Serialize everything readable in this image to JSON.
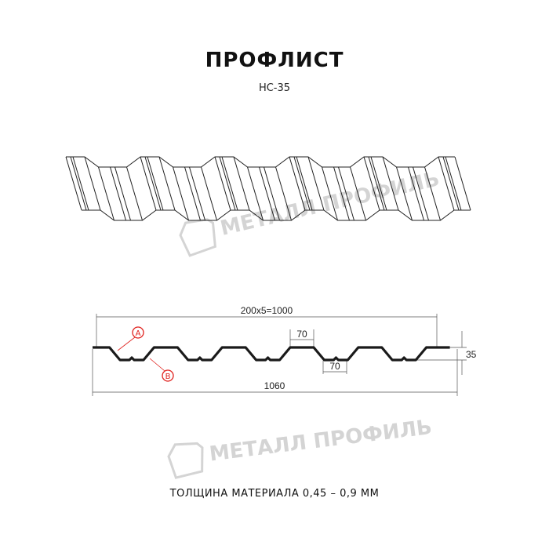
{
  "title": "ПРОФЛИСТ",
  "subtitle": "НС-35",
  "watermark": "МЕТАЛЛ ПРОФИЛЬ",
  "dimensions": {
    "pitch_total": "200x5=1000",
    "top_flange": "70",
    "bottom_flange": "70",
    "height": "35",
    "full_width": "1060"
  },
  "markers": {
    "a": "A",
    "b": "B"
  },
  "footer": "ТОЛЩИНА МАТЕРИАЛА 0,45 – 0,9 ММ",
  "colors": {
    "profile": "#1a1a1a",
    "marker": "#e0201c",
    "watermark": "#d4d4d4"
  }
}
